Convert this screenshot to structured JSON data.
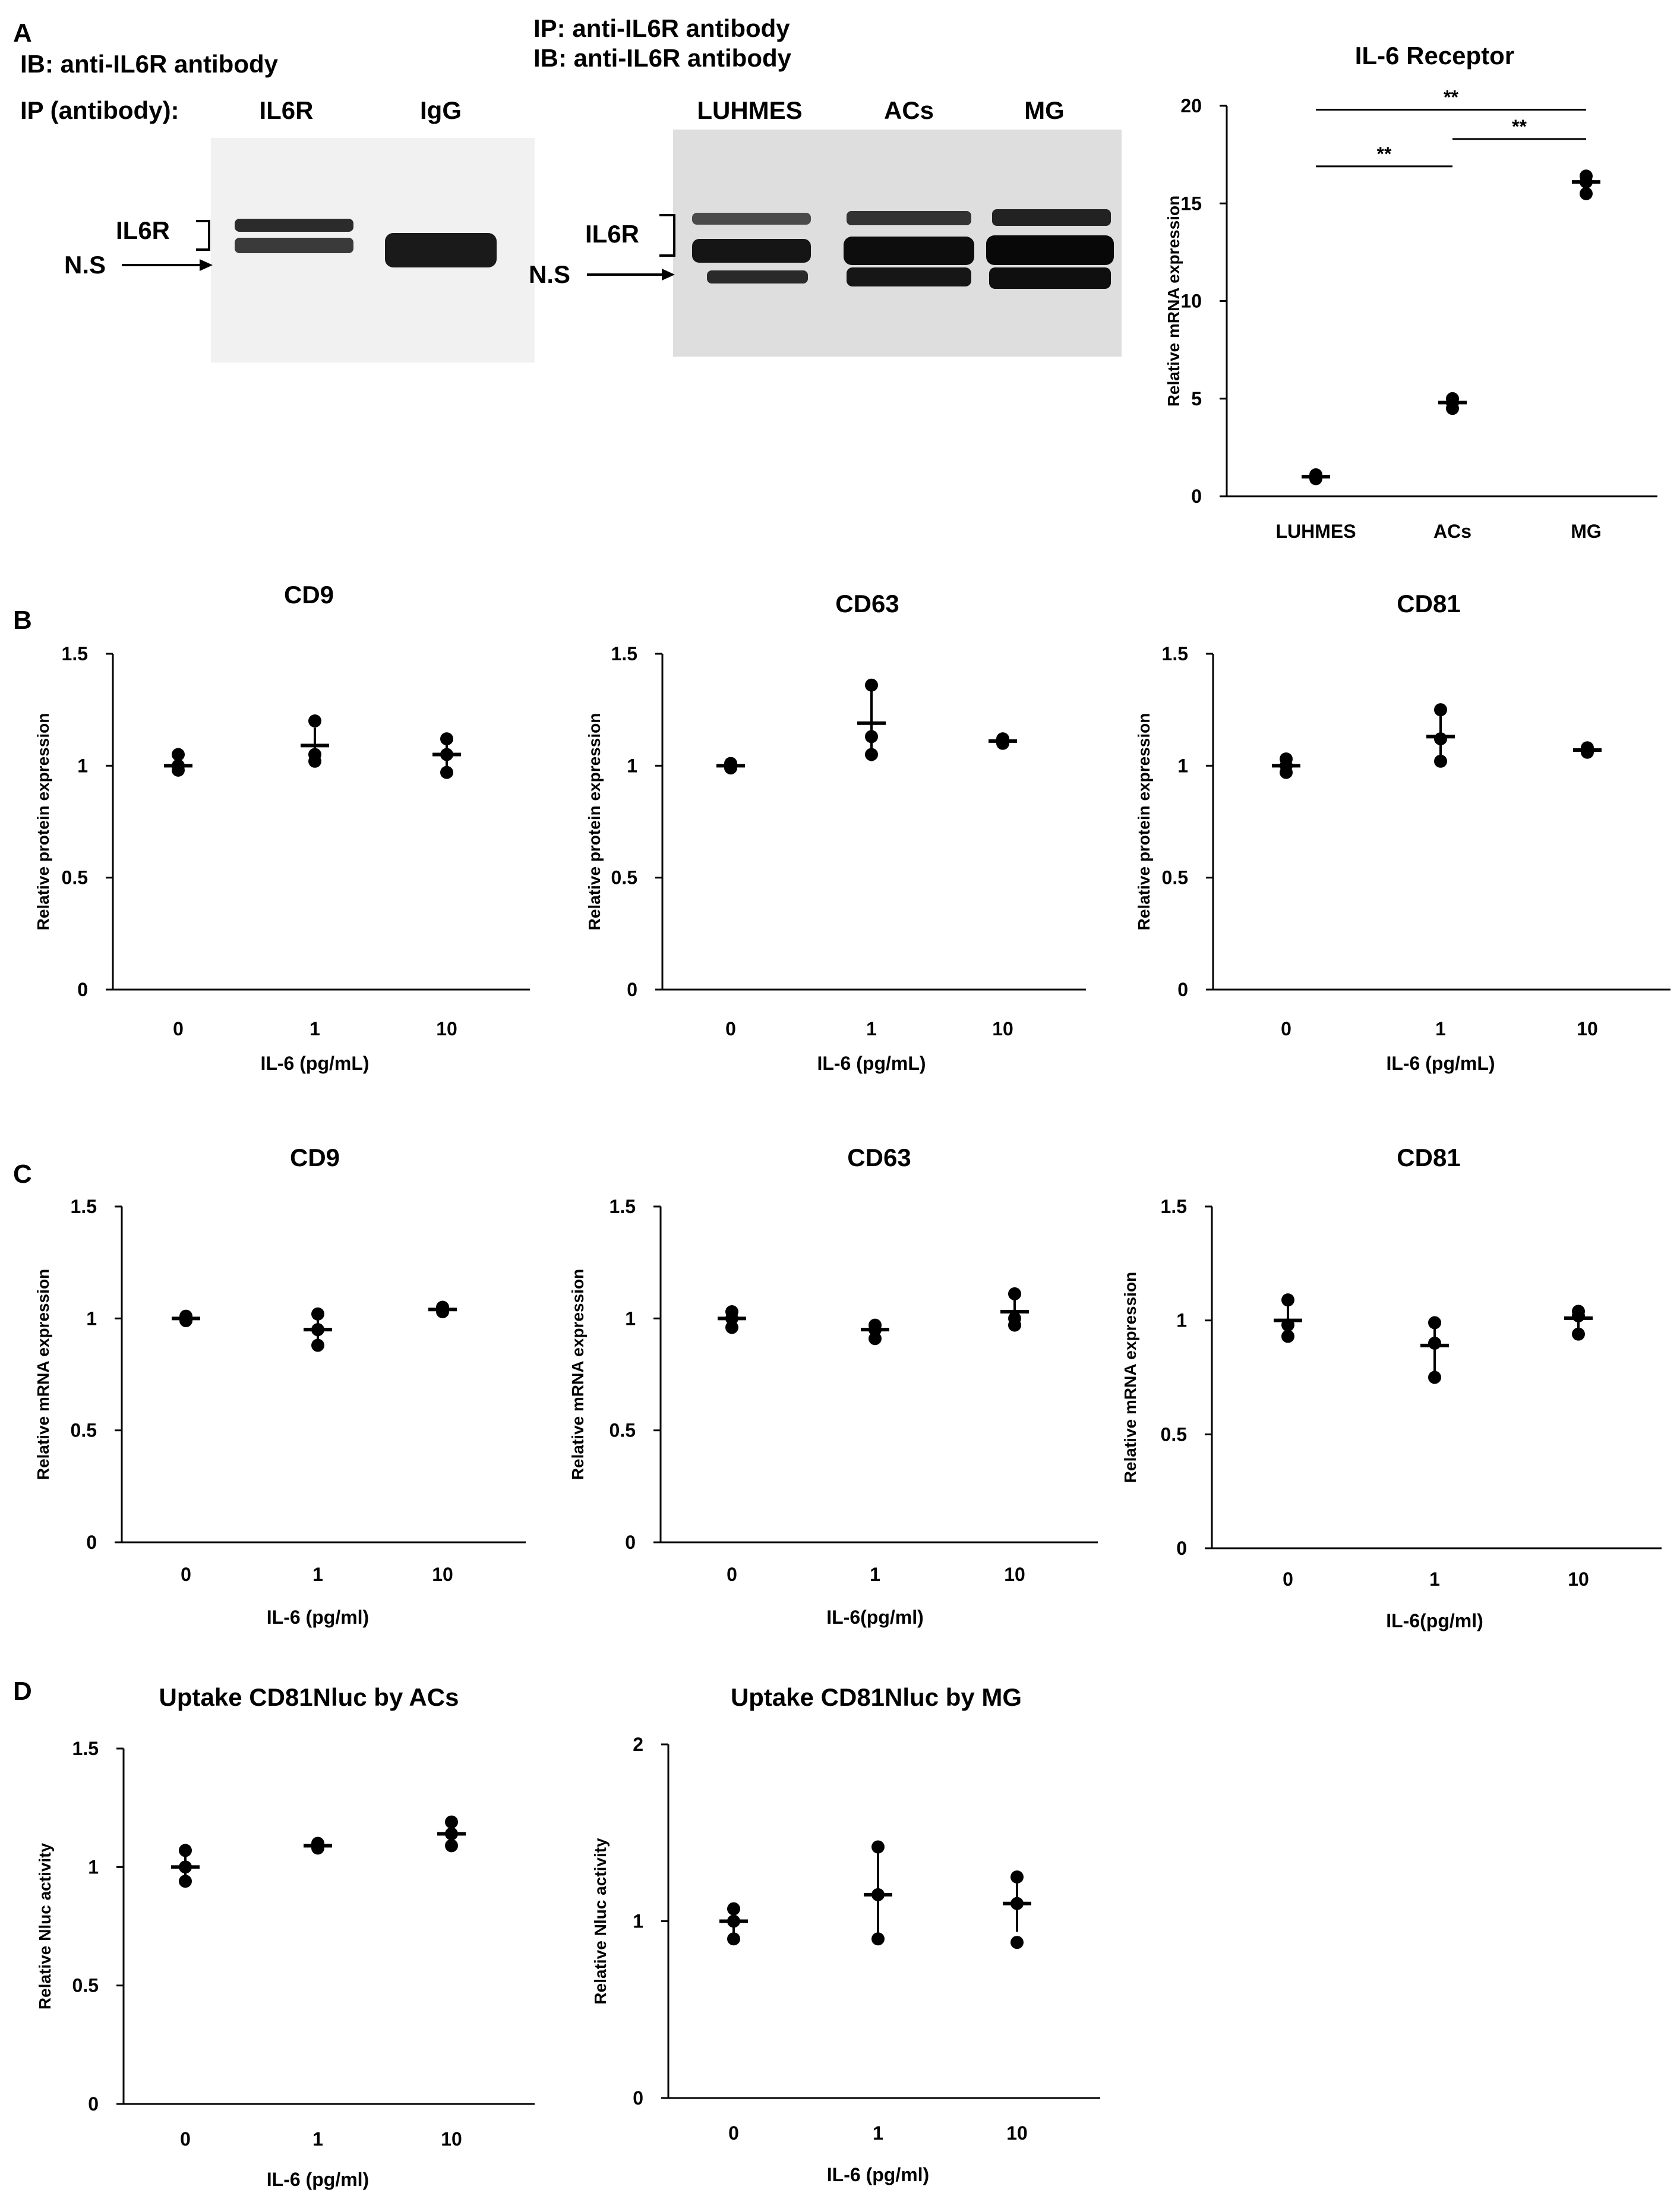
{
  "panels": {
    "A": "A",
    "B": "B",
    "C": "C",
    "D": "D"
  },
  "western_blots": {
    "left": {
      "ib_label": "IB: anti-IL6R antibody",
      "ip_label": "IP (antibody):",
      "lanes": [
        "IL6R",
        "IgG"
      ],
      "band_label": "IL6R",
      "ns_label": "N.S"
    },
    "right": {
      "ip_label": "IP: anti-IL6R antibody",
      "ib_label": "IB: anti-IL6R antibody",
      "lanes": [
        "LUHMES",
        "ACs",
        "MG"
      ],
      "band_label": "IL6R",
      "ns_label": "N.S"
    }
  },
  "chart_data": [
    {
      "id": "A-il6r",
      "type": "scatter",
      "title": "IL-6 Receptor",
      "ylabel": "Relative mRNA expression",
      "xlabel": "",
      "categories": [
        "LUHMES",
        "ACs",
        "MG"
      ],
      "ylim": [
        0,
        20
      ],
      "yticks": [
        0,
        5,
        10,
        15,
        20
      ],
      "means": [
        1.0,
        4.8,
        16.1
      ],
      "errors": [
        0.15,
        0.3,
        0.3
      ],
      "points": [
        [
          0.9,
          1.0,
          1.1
        ],
        [
          4.5,
          4.8,
          5.0
        ],
        [
          15.5,
          16.1,
          16.4
        ]
      ],
      "significance": [
        {
          "from": 0,
          "to": 2,
          "label": "**",
          "y": 19.8
        },
        {
          "from": 0,
          "to": 1,
          "label": "**",
          "y": 16.9
        },
        {
          "from": 1,
          "to": 2,
          "label": "**",
          "y": 18.3
        }
      ]
    },
    {
      "id": "B-cd9",
      "type": "scatter",
      "title": "CD9",
      "ylabel": "Relative protein expression",
      "xlabel": "IL-6 (pg/mL)",
      "categories": [
        "0",
        "1",
        "10"
      ],
      "ylim": [
        0,
        1.5
      ],
      "yticks": [
        0,
        0.5,
        1,
        1.5
      ],
      "means": [
        1.0,
        1.09,
        1.05
      ],
      "errors": [
        0.03,
        0.08,
        0.06
      ],
      "points": [
        [
          0.98,
          1.0,
          1.05
        ],
        [
          1.02,
          1.05,
          1.2
        ],
        [
          0.97,
          1.05,
          1.12
        ]
      ]
    },
    {
      "id": "B-cd63",
      "type": "scatter",
      "title": "CD63",
      "ylabel": "Relative protein expression",
      "xlabel": "IL-6 (pg/mL)",
      "categories": [
        "0",
        "1",
        "10"
      ],
      "ylim": [
        0,
        1.5
      ],
      "yticks": [
        0,
        0.5,
        1,
        1.5
      ],
      "means": [
        1.0,
        1.19,
        1.11
      ],
      "errors": [
        0.01,
        0.17,
        0.01
      ],
      "points": [
        [
          0.99,
          1.0,
          1.01
        ],
        [
          1.05,
          1.13,
          1.36
        ],
        [
          1.1,
          1.11,
          1.12
        ]
      ]
    },
    {
      "id": "B-cd81",
      "type": "scatter",
      "title": "CD81",
      "ylabel": "Relative protein expression",
      "xlabel": "IL-6 (pg/mL)",
      "categories": [
        "0",
        "1",
        "10"
      ],
      "ylim": [
        0,
        1.5
      ],
      "yticks": [
        0,
        0.5,
        1,
        1.5
      ],
      "means": [
        1.0,
        1.13,
        1.07
      ],
      "errors": [
        0.03,
        0.11,
        0.01
      ],
      "points": [
        [
          0.97,
          1.0,
          1.03
        ],
        [
          1.02,
          1.12,
          1.25
        ],
        [
          1.06,
          1.07,
          1.08
        ]
      ]
    },
    {
      "id": "C-cd9",
      "type": "scatter",
      "title": "CD9",
      "ylabel": "Relative mRNA expression",
      "xlabel": "IL-6 (pg/ml)",
      "categories": [
        "0",
        "1",
        "10"
      ],
      "ylim": [
        0,
        1.5
      ],
      "yticks": [
        0,
        0.5,
        1,
        1.5
      ],
      "means": [
        1.0,
        0.95,
        1.04
      ],
      "errors": [
        0.01,
        0.07,
        0.01
      ],
      "points": [
        [
          0.99,
          1.0,
          1.01
        ],
        [
          0.88,
          0.95,
          1.02
        ],
        [
          1.03,
          1.04,
          1.05
        ]
      ]
    },
    {
      "id": "C-cd63",
      "type": "scatter",
      "title": "CD63",
      "ylabel": "Relative mRNA expression",
      "xlabel": "IL-6(pg/ml)",
      "categories": [
        "0",
        "1",
        "10"
      ],
      "ylim": [
        0,
        1.5
      ],
      "yticks": [
        0,
        0.5,
        1,
        1.5
      ],
      "means": [
        1.0,
        0.95,
        1.03
      ],
      "errors": [
        0.03,
        0.03,
        0.07
      ],
      "points": [
        [
          0.96,
          1.0,
          1.03
        ],
        [
          0.91,
          0.95,
          0.97
        ],
        [
          0.97,
          1.0,
          1.11
        ]
      ]
    },
    {
      "id": "C-cd81",
      "type": "scatter",
      "title": "CD81",
      "ylabel": "Relative mRNA expression",
      "xlabel": "IL-6(pg/ml)",
      "categories": [
        "0",
        "1",
        "10"
      ],
      "ylim": [
        0,
        1.5
      ],
      "yticks": [
        0,
        0.5,
        1,
        1.5
      ],
      "means": [
        1.0,
        0.89,
        1.01
      ],
      "errors": [
        0.08,
        0.12,
        0.05
      ],
      "points": [
        [
          0.93,
          0.98,
          1.09
        ],
        [
          0.75,
          0.9,
          0.99
        ],
        [
          0.94,
          1.02,
          1.04
        ]
      ]
    },
    {
      "id": "D-acs",
      "type": "scatter",
      "title": "Uptake CD81Nluc by ACs",
      "ylabel": "Relative Nluc activity",
      "xlabel": "IL-6 (pg/ml)",
      "categories": [
        "0",
        "1",
        "10"
      ],
      "ylim": [
        0,
        1.5
      ],
      "yticks": [
        0,
        0.5,
        1,
        1.5
      ],
      "means": [
        1.0,
        1.09,
        1.14
      ],
      "errors": [
        0.06,
        0.01,
        0.05
      ],
      "points": [
        [
          0.94,
          1.0,
          1.07
        ],
        [
          1.08,
          1.09,
          1.1
        ],
        [
          1.09,
          1.14,
          1.19
        ]
      ]
    },
    {
      "id": "D-mg",
      "type": "scatter",
      "title": "Uptake CD81Nluc by MG",
      "ylabel": "Relative Nluc activity",
      "xlabel": "IL-6 (pg/ml)",
      "categories": [
        "0",
        "1",
        "10"
      ],
      "ylim": [
        0,
        2
      ],
      "yticks": [
        0,
        1,
        2
      ],
      "means": [
        1.0,
        1.15,
        1.1
      ],
      "errors": [
        0.08,
        0.28,
        0.16
      ],
      "points": [
        [
          0.9,
          1.0,
          1.07
        ],
        [
          0.9,
          1.15,
          1.42
        ],
        [
          0.88,
          1.1,
          1.25
        ]
      ]
    }
  ]
}
